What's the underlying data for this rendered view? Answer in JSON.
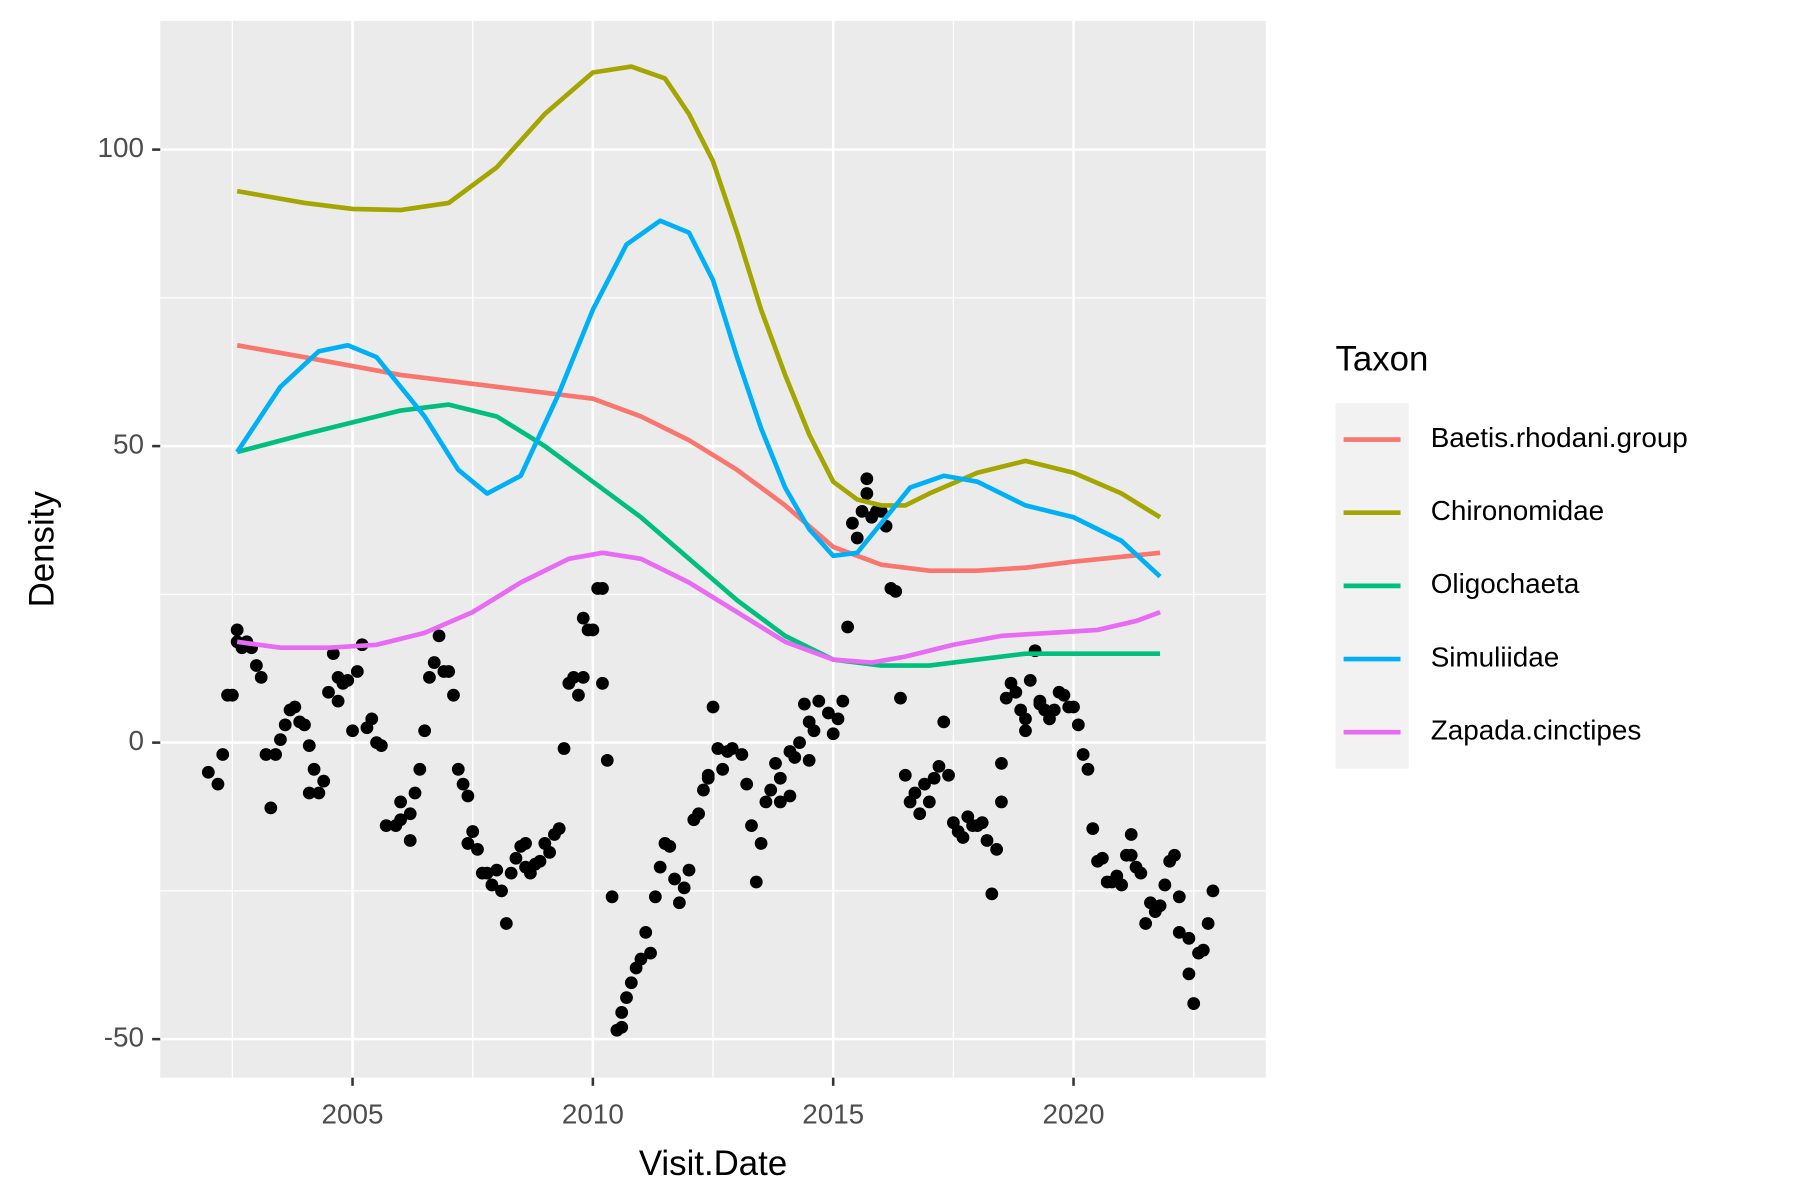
{
  "chart_data": {
    "type": "line",
    "x_label": "Visit.Date",
    "y_label": "Density",
    "legend_title": "Taxon",
    "legend_position": "right",
    "xlim": [
      2001,
      2024
    ],
    "ylim": [
      -56.5,
      121.7
    ],
    "xticks": [
      2005,
      2010,
      2015,
      2020
    ],
    "yticks": [
      -50,
      0,
      50,
      100
    ],
    "grid": true,
    "minor_grid": true,
    "series": [
      {
        "name": "Baetis.rhodani.group",
        "color": "#F8766D",
        "type": "line",
        "x": [
          2002.6,
          2004,
          2006,
          2008,
          2010,
          2011,
          2012,
          2013,
          2014,
          2015,
          2016,
          2017,
          2018,
          2019,
          2020,
          2021.8
        ],
        "values": [
          67,
          65,
          62,
          60,
          58,
          55,
          51,
          46,
          40,
          33,
          30,
          29,
          29,
          29.5,
          30.5,
          32
        ]
      },
      {
        "name": "Chironomidae",
        "color": "#A3A500",
        "type": "line",
        "x": [
          2002.6,
          2004,
          2005,
          2006,
          2007,
          2008,
          2009,
          2010,
          2010.8,
          2011.5,
          2012,
          2012.5,
          2013,
          2013.5,
          2014,
          2014.5,
          2015,
          2015.5,
          2016,
          2016.5,
          2017,
          2018,
          2019,
          2020,
          2021,
          2021.8
        ],
        "values": [
          93,
          91,
          90,
          89.8,
          91,
          97,
          106,
          113,
          114,
          112,
          106,
          98,
          86,
          73,
          62,
          52,
          44,
          41,
          40,
          40,
          42,
          45.5,
          47.5,
          45.5,
          42,
          38
        ]
      },
      {
        "name": "Oligochaeta",
        "color": "#00BF7D",
        "type": "line",
        "x": [
          2002.6,
          2004,
          2005,
          2006,
          2007,
          2008,
          2009,
          2010,
          2011,
          2012,
          2013,
          2014,
          2015,
          2016,
          2017,
          2018,
          2019,
          2020,
          2021.8
        ],
        "values": [
          49,
          52,
          54,
          56,
          57,
          55,
          50,
          44,
          38,
          31,
          24,
          18,
          14,
          13,
          13,
          14,
          15,
          15,
          15
        ]
      },
      {
        "name": "Simuliidae",
        "color": "#00B0F6",
        "type": "line",
        "x": [
          2002.6,
          2003.5,
          2004.3,
          2004.9,
          2005.5,
          2006.5,
          2007.2,
          2007.8,
          2008.5,
          2009.3,
          2010,
          2010.7,
          2011.4,
          2012,
          2012.5,
          2013,
          2013.5,
          2014,
          2014.5,
          2015,
          2015.5,
          2016,
          2016.6,
          2017.3,
          2018,
          2019,
          2020,
          2021,
          2021.8
        ],
        "values": [
          49,
          60,
          66,
          67,
          65,
          55,
          46,
          42,
          45,
          59,
          73,
          84,
          88,
          86,
          78,
          65,
          53,
          43,
          36,
          31.5,
          32,
          37,
          43,
          45,
          44,
          40,
          38,
          34,
          28
        ]
      },
      {
        "name": "Zapada.cinctipes",
        "color": "#E76BF3",
        "type": "line",
        "x": [
          2002.6,
          2003.5,
          2004.5,
          2005.5,
          2006.5,
          2007.5,
          2008.5,
          2009.5,
          2010.2,
          2011,
          2012,
          2013,
          2014,
          2015,
          2015.8,
          2016.5,
          2017.5,
          2018.5,
          2019.5,
          2020.5,
          2021.3,
          2021.8
        ],
        "values": [
          17,
          16,
          16,
          16.5,
          18.5,
          22,
          27,
          31,
          32,
          31,
          27,
          22,
          17,
          14,
          13.5,
          14.5,
          16.5,
          18,
          18.5,
          19,
          20.5,
          22
        ]
      },
      {
        "color": "#000000",
        "type": "scatter",
        "x": [
          2002.0,
          2002.2,
          2002.3,
          2002.4,
          2002.5,
          2002.6,
          2002.6,
          2002.7,
          2002.8,
          2002.9,
          2003.0,
          2003.1,
          2003.2,
          2003.3,
          2003.4,
          2003.5,
          2003.6,
          2003.7,
          2003.8,
          2003.9,
          2004.0,
          2004.1,
          2004.1,
          2004.2,
          2004.3,
          2004.4,
          2004.5,
          2004.6,
          2004.7,
          2004.7,
          2004.8,
          2004.9,
          2005.0,
          2005.1,
          2005.2,
          2005.3,
          2005.4,
          2005.5,
          2005.6,
          2005.7,
          2005.9,
          2006.0,
          2006.0,
          2006.2,
          2006.2,
          2006.3,
          2006.4,
          2006.5,
          2006.6,
          2006.7,
          2006.8,
          2006.9,
          2007.0,
          2007.1,
          2007.2,
          2007.3,
          2007.4,
          2007.4,
          2007.5,
          2007.6,
          2007.7,
          2007.8,
          2007.9,
          2008.0,
          2008.1,
          2008.2,
          2008.3,
          2008.4,
          2008.5,
          2008.6,
          2008.6,
          2008.7,
          2008.8,
          2008.9,
          2009.0,
          2009.1,
          2009.2,
          2009.3,
          2009.4,
          2009.5,
          2009.6,
          2009.7,
          2009.8,
          2009.8,
          2009.9,
          2010.0,
          2010.1,
          2010.2,
          2010.2,
          2010.3,
          2010.4,
          2010.5,
          2010.6,
          2010.6,
          2010.7,
          2010.8,
          2010.9,
          2011.0,
          2011.1,
          2011.2,
          2011.3,
          2011.4,
          2011.5,
          2011.6,
          2011.7,
          2011.8,
          2011.9,
          2012.0,
          2012.1,
          2012.2,
          2012.3,
          2012.4,
          2012.4,
          2012.5,
          2012.6,
          2012.7,
          2012.8,
          2012.9,
          2013.1,
          2013.2,
          2013.3,
          2013.4,
          2013.5,
          2013.6,
          2013.7,
          2013.8,
          2013.9,
          2013.9,
          2014.1,
          2014.1,
          2014.2,
          2014.3,
          2014.4,
          2014.5,
          2014.5,
          2014.6,
          2014.7,
          2014.9,
          2015.0,
          2015.1,
          2015.2,
          2015.3,
          2015.4,
          2015.5,
          2015.6,
          2015.7,
          2015.7,
          2015.8,
          2015.9,
          2016.0,
          2016.1,
          2016.2,
          2016.3,
          2016.4,
          2016.5,
          2016.6,
          2016.7,
          2016.8,
          2016.9,
          2017.0,
          2017.1,
          2017.2,
          2017.3,
          2017.4,
          2017.5,
          2017.6,
          2017.7,
          2017.8,
          2017.9,
          2018.0,
          2018.1,
          2018.2,
          2018.3,
          2018.4,
          2018.5,
          2018.5,
          2018.6,
          2018.7,
          2018.8,
          2018.9,
          2019.0,
          2019.0,
          2019.1,
          2019.2,
          2019.3,
          2019.3,
          2019.4,
          2019.5,
          2019.6,
          2019.7,
          2019.8,
          2019.9,
          2020.0,
          2020.1,
          2020.2,
          2020.3,
          2020.4,
          2020.5,
          2020.6,
          2020.7,
          2020.8,
          2020.9,
          2021.0,
          2021.1,
          2021.2,
          2021.2,
          2021.3,
          2021.4,
          2021.5,
          2021.6,
          2021.7,
          2021.8,
          2021.9,
          2022.0,
          2022.1,
          2022.2,
          2022.2,
          2022.4,
          2022.4,
          2022.5,
          2022.6,
          2022.7,
          2022.8,
          2022.9
        ],
        "values": [
          -5,
          -7,
          -2,
          8,
          8,
          19,
          17,
          16,
          17,
          16,
          13,
          11,
          -2,
          -11,
          -2,
          0.5,
          3,
          5.5,
          6,
          3.5,
          3,
          -0.5,
          -8.5,
          -4.5,
          -8.5,
          -6.5,
          8.5,
          15,
          11,
          7,
          10,
          10.5,
          2,
          12,
          16.5,
          2.5,
          4,
          0,
          -0.5,
          -14,
          -14,
          -13,
          -10,
          -12,
          -16.5,
          -8.5,
          -4.5,
          2,
          11,
          13.5,
          18,
          12,
          12,
          8,
          -4.5,
          -7,
          -9,
          -17,
          -15,
          -18,
          -22,
          -22,
          -24,
          -21.5,
          -25,
          -30.5,
          -22,
          -19.5,
          -17.5,
          -17,
          -21,
          -22,
          -20.5,
          -20,
          -17,
          -18.5,
          -15.5,
          -14.5,
          -1,
          10,
          11,
          8,
          11,
          21,
          19,
          19,
          26,
          26,
          10,
          -3,
          -26,
          -48.5,
          -48,
          -45.5,
          -43,
          -40.5,
          -38,
          -36.5,
          -32,
          -35.5,
          -26,
          -21,
          -17,
          -17.5,
          -23,
          -27,
          -24.5,
          -21.5,
          -13,
          -12,
          -8,
          -6,
          -5.5,
          6,
          -1,
          -4.5,
          -1.5,
          -1,
          -2,
          -7,
          -14,
          -23.5,
          -17,
          -10,
          -8,
          -3.5,
          -6,
          -10,
          -9,
          -1.5,
          -2.5,
          0,
          6.5,
          3.5,
          -3,
          2,
          7,
          5,
          1.5,
          4,
          7,
          19.5,
          37,
          34.5,
          39,
          44.5,
          42,
          38,
          39,
          39,
          36.5,
          26,
          25.5,
          7.5,
          -5.5,
          -10,
          -8.5,
          -12,
          -7,
          -10,
          -6,
          -4,
          3.5,
          -5.5,
          -13.5,
          -15,
          -16,
          -12.5,
          -14,
          -14,
          -13.5,
          -16.5,
          -25.5,
          -18,
          -10,
          -3.5,
          7.5,
          10,
          8.5,
          5.5,
          2,
          4,
          10.5,
          15.5,
          7,
          6.5,
          5.5,
          4,
          5.5,
          8.5,
          8,
          6,
          6,
          3,
          -2,
          -4.5,
          -14.5,
          -20,
          -19.5,
          -23.5,
          -23.5,
          -22.5,
          -24,
          -19,
          -15.5,
          -19,
          -21,
          -22,
          -30.5,
          -27,
          -28.5,
          -27.5,
          -24,
          -20,
          -19,
          -26,
          -32,
          -33,
          -39,
          -44,
          -35.5,
          -35,
          -30.5,
          -25
        ]
      }
    ]
  }
}
